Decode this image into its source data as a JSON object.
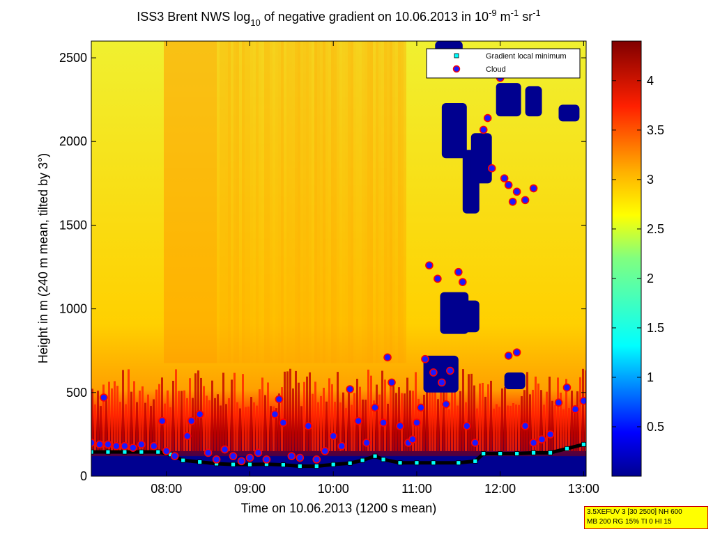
{
  "chart_data": {
    "type": "heatmap",
    "title": {
      "prefix": "ISS3 Brent NWS log",
      "sub": "10",
      "mid": " of negative gradient on 10.06.2013 in 10",
      "exp1": "-9",
      "mid2": " m",
      "exp2": "-1",
      "mid3": " sr",
      "exp3": "-1"
    },
    "xlabel": "Time on 10.06.2013 (1200 s mean)",
    "ylabel": "Height in m (240 m mean, tilted by 3°)",
    "x_range_hours": [
      7.1,
      13.03
    ],
    "x_ticks": [
      {
        "value": 8,
        "label": "08:00"
      },
      {
        "value": 9,
        "label": "09:00"
      },
      {
        "value": 10,
        "label": "10:00"
      },
      {
        "value": 11,
        "label": "11:00"
      },
      {
        "value": 12,
        "label": "12:00"
      },
      {
        "value": 13,
        "label": "13:00"
      }
    ],
    "y_range": [
      0,
      2600
    ],
    "y_ticks": [
      0,
      500,
      1000,
      1500,
      2000,
      2500
    ],
    "colorbar": {
      "range": [
        0,
        4.4
      ],
      "ticks": [
        0.5,
        1,
        1.5,
        2,
        2.5,
        3,
        3.5,
        4
      ],
      "colormap": "jet"
    },
    "legend": {
      "position": "top-right",
      "entries": [
        {
          "label": "Gradient local minimum",
          "marker": "square",
          "color": "#00ffff"
        },
        {
          "label": "Cloud",
          "marker": "circle",
          "color": "#1a1aff",
          "edge": "#ff0000"
        }
      ]
    },
    "series": [
      {
        "name": "Gradient local minimum",
        "points": [
          [
            7.1,
            145
          ],
          [
            7.3,
            145
          ],
          [
            7.5,
            145
          ],
          [
            7.7,
            145
          ],
          [
            7.9,
            145
          ],
          [
            8.05,
            130
          ],
          [
            8.2,
            95
          ],
          [
            8.4,
            85
          ],
          [
            8.6,
            75
          ],
          [
            8.8,
            70
          ],
          [
            9.0,
            70
          ],
          [
            9.2,
            72
          ],
          [
            9.4,
            68
          ],
          [
            9.6,
            60
          ],
          [
            9.8,
            60
          ],
          [
            10.0,
            70
          ],
          [
            10.2,
            78
          ],
          [
            10.35,
            95
          ],
          [
            10.5,
            120
          ],
          [
            10.6,
            100
          ],
          [
            10.8,
            80
          ],
          [
            11.0,
            80
          ],
          [
            11.2,
            80
          ],
          [
            11.5,
            80
          ],
          [
            11.7,
            90
          ],
          [
            11.8,
            135
          ],
          [
            12.0,
            135
          ],
          [
            12.2,
            135
          ],
          [
            12.4,
            140
          ],
          [
            12.6,
            140
          ],
          [
            12.8,
            165
          ],
          [
            13.0,
            190
          ]
        ]
      },
      {
        "name": "Cloud",
        "points": [
          [
            7.1,
            200
          ],
          [
            7.2,
            190
          ],
          [
            7.25,
            470
          ],
          [
            7.3,
            190
          ],
          [
            7.4,
            180
          ],
          [
            7.5,
            180
          ],
          [
            7.6,
            170
          ],
          [
            7.7,
            190
          ],
          [
            7.85,
            180
          ],
          [
            7.95,
            330
          ],
          [
            8.0,
            150
          ],
          [
            8.1,
            120
          ],
          [
            8.25,
            240
          ],
          [
            8.3,
            330
          ],
          [
            8.4,
            370
          ],
          [
            8.5,
            140
          ],
          [
            8.6,
            100
          ],
          [
            8.7,
            160
          ],
          [
            8.8,
            120
          ],
          [
            8.9,
            90
          ],
          [
            9.0,
            110
          ],
          [
            9.1,
            140
          ],
          [
            9.2,
            100
          ],
          [
            9.3,
            370
          ],
          [
            9.35,
            460
          ],
          [
            9.4,
            320
          ],
          [
            9.5,
            120
          ],
          [
            9.6,
            110
          ],
          [
            9.7,
            300
          ],
          [
            9.8,
            100
          ],
          [
            9.9,
            150
          ],
          [
            10.0,
            240
          ],
          [
            10.1,
            180
          ],
          [
            10.2,
            520
          ],
          [
            10.3,
            330
          ],
          [
            10.4,
            200
          ],
          [
            10.5,
            410
          ],
          [
            10.6,
            320
          ],
          [
            10.65,
            710
          ],
          [
            10.7,
            560
          ],
          [
            10.8,
            300
          ],
          [
            10.9,
            200
          ],
          [
            10.95,
            220
          ],
          [
            11.0,
            320
          ],
          [
            11.05,
            410
          ],
          [
            11.1,
            700
          ],
          [
            11.15,
            1260
          ],
          [
            11.2,
            620
          ],
          [
            11.25,
            1180
          ],
          [
            11.3,
            560
          ],
          [
            11.35,
            430
          ],
          [
            11.4,
            630
          ],
          [
            11.5,
            1220
          ],
          [
            11.55,
            1160
          ],
          [
            11.6,
            300
          ],
          [
            11.7,
            200
          ],
          [
            11.8,
            2070
          ],
          [
            11.85,
            2140
          ],
          [
            11.9,
            1840
          ],
          [
            12.0,
            2380
          ],
          [
            12.05,
            1780
          ],
          [
            12.1,
            1740
          ],
          [
            12.15,
            1640
          ],
          [
            12.2,
            1700
          ],
          [
            12.3,
            1650
          ],
          [
            12.4,
            1720
          ],
          [
            12.1,
            720
          ],
          [
            12.2,
            740
          ],
          [
            12.3,
            300
          ],
          [
            12.4,
            200
          ],
          [
            12.5,
            220
          ],
          [
            12.6,
            250
          ],
          [
            12.7,
            440
          ],
          [
            12.8,
            530
          ],
          [
            12.9,
            400
          ],
          [
            13.0,
            450
          ]
        ]
      }
    ],
    "annotation_box": {
      "line1": "3.5XEFUV 3 [30 2500] NH 600",
      "line2": "MB 200 RG 15% TI 0 HI 15"
    }
  }
}
